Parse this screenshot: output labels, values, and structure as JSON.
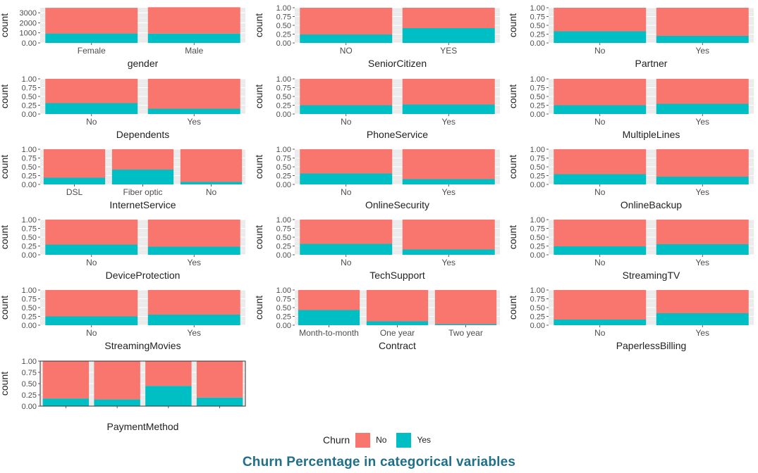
{
  "title": "Churn Percentage in categorical variables",
  "legend": {
    "title": "Churn",
    "items": [
      {
        "label": "No",
        "color": "#F8766D"
      },
      {
        "label": "Yes",
        "color": "#00BFC4"
      }
    ]
  },
  "colors": {
    "no": "#F8766D",
    "yes": "#00BFC4",
    "panel_bg": "#EBEBEB",
    "grid": "#FFFFFF"
  },
  "chart_data": [
    {
      "type": "bar",
      "stacked": true,
      "xlabel": "gender",
      "ylabel": "count",
      "categories": [
        "Female",
        "Male"
      ],
      "ylim": [
        0,
        3500
      ],
      "yticks": [
        0,
        1000,
        2000,
        3000
      ],
      "series": [
        {
          "name": "No",
          "values": [
            2550,
            2620
          ]
        },
        {
          "name": "Yes",
          "values": [
            940,
            930
          ]
        }
      ]
    },
    {
      "type": "bar",
      "stacked": true,
      "xlabel": "SeniorCitizen",
      "ylabel": "count",
      "categories": [
        "NO",
        "YES"
      ],
      "ylim": [
        0,
        1
      ],
      "yticks": [
        0,
        0.25,
        0.5,
        0.75,
        1
      ],
      "series": [
        {
          "name": "No",
          "values": [
            0.76,
            0.58
          ]
        },
        {
          "name": "Yes",
          "values": [
            0.24,
            0.42
          ]
        }
      ]
    },
    {
      "type": "bar",
      "stacked": true,
      "xlabel": "Partner",
      "ylabel": "count",
      "categories": [
        "No",
        "Yes"
      ],
      "ylim": [
        0,
        1
      ],
      "yticks": [
        0,
        0.25,
        0.5,
        0.75,
        1
      ],
      "series": [
        {
          "name": "No",
          "values": [
            0.67,
            0.8
          ]
        },
        {
          "name": "Yes",
          "values": [
            0.33,
            0.2
          ]
        }
      ]
    },
    {
      "type": "bar",
      "stacked": true,
      "xlabel": "Dependents",
      "ylabel": "count",
      "categories": [
        "No",
        "Yes"
      ],
      "ylim": [
        0,
        1
      ],
      "yticks": [
        0,
        0.25,
        0.5,
        0.75,
        1
      ],
      "series": [
        {
          "name": "No",
          "values": [
            0.69,
            0.85
          ]
        },
        {
          "name": "Yes",
          "values": [
            0.31,
            0.15
          ]
        }
      ]
    },
    {
      "type": "bar",
      "stacked": true,
      "xlabel": "PhoneService",
      "ylabel": "count",
      "categories": [
        "No",
        "Yes"
      ],
      "ylim": [
        0,
        1
      ],
      "yticks": [
        0,
        0.25,
        0.5,
        0.75,
        1
      ],
      "series": [
        {
          "name": "No",
          "values": [
            0.75,
            0.73
          ]
        },
        {
          "name": "Yes",
          "values": [
            0.25,
            0.27
          ]
        }
      ]
    },
    {
      "type": "bar",
      "stacked": true,
      "xlabel": "MultipleLines",
      "ylabel": "count",
      "categories": [
        "No",
        "Yes"
      ],
      "ylim": [
        0,
        1
      ],
      "yticks": [
        0,
        0.25,
        0.5,
        0.75,
        1
      ],
      "series": [
        {
          "name": "No",
          "values": [
            0.75,
            0.71
          ]
        },
        {
          "name": "Yes",
          "values": [
            0.25,
            0.29
          ]
        }
      ]
    },
    {
      "type": "bar",
      "stacked": true,
      "xlabel": "InternetService",
      "ylabel": "count",
      "categories": [
        "DSL",
        "Fiber optic",
        "No"
      ],
      "ylim": [
        0,
        1
      ],
      "yticks": [
        0,
        0.25,
        0.5,
        0.75,
        1
      ],
      "series": [
        {
          "name": "No",
          "values": [
            0.81,
            0.58,
            0.93
          ]
        },
        {
          "name": "Yes",
          "values": [
            0.19,
            0.42,
            0.07
          ]
        }
      ]
    },
    {
      "type": "bar",
      "stacked": true,
      "xlabel": "OnlineSecurity",
      "ylabel": "count",
      "categories": [
        "No",
        "Yes"
      ],
      "ylim": [
        0,
        1
      ],
      "yticks": [
        0,
        0.25,
        0.5,
        0.75,
        1
      ],
      "series": [
        {
          "name": "No",
          "values": [
            0.69,
            0.85
          ]
        },
        {
          "name": "Yes",
          "values": [
            0.31,
            0.15
          ]
        }
      ]
    },
    {
      "type": "bar",
      "stacked": true,
      "xlabel": "OnlineBackup",
      "ylabel": "count",
      "categories": [
        "No",
        "Yes"
      ],
      "ylim": [
        0,
        1
      ],
      "yticks": [
        0,
        0.25,
        0.5,
        0.75,
        1
      ],
      "series": [
        {
          "name": "No",
          "values": [
            0.71,
            0.78
          ]
        },
        {
          "name": "Yes",
          "values": [
            0.29,
            0.22
          ]
        }
      ]
    },
    {
      "type": "bar",
      "stacked": true,
      "xlabel": "DeviceProtection",
      "ylabel": "count",
      "categories": [
        "No",
        "Yes"
      ],
      "ylim": [
        0,
        1
      ],
      "yticks": [
        0,
        0.25,
        0.5,
        0.75,
        1
      ],
      "series": [
        {
          "name": "No",
          "values": [
            0.71,
            0.77
          ]
        },
        {
          "name": "Yes",
          "values": [
            0.29,
            0.23
          ]
        }
      ]
    },
    {
      "type": "bar",
      "stacked": true,
      "xlabel": "TechSupport",
      "ylabel": "count",
      "categories": [
        "No",
        "Yes"
      ],
      "ylim": [
        0,
        1
      ],
      "yticks": [
        0,
        0.25,
        0.5,
        0.75,
        1
      ],
      "series": [
        {
          "name": "No",
          "values": [
            0.69,
            0.85
          ]
        },
        {
          "name": "Yes",
          "values": [
            0.31,
            0.15
          ]
        }
      ]
    },
    {
      "type": "bar",
      "stacked": true,
      "xlabel": "StreamingTV",
      "ylabel": "count",
      "categories": [
        "No",
        "Yes"
      ],
      "ylim": [
        0,
        1
      ],
      "yticks": [
        0,
        0.25,
        0.5,
        0.75,
        1
      ],
      "series": [
        {
          "name": "No",
          "values": [
            0.76,
            0.7
          ]
        },
        {
          "name": "Yes",
          "values": [
            0.24,
            0.3
          ]
        }
      ]
    },
    {
      "type": "bar",
      "stacked": true,
      "xlabel": "StreamingMovies",
      "ylabel": "count",
      "categories": [
        "No",
        "Yes"
      ],
      "ylim": [
        0,
        1
      ],
      "yticks": [
        0,
        0.25,
        0.5,
        0.75,
        1
      ],
      "series": [
        {
          "name": "No",
          "values": [
            0.75,
            0.7
          ]
        },
        {
          "name": "Yes",
          "values": [
            0.25,
            0.3
          ]
        }
      ]
    },
    {
      "type": "bar",
      "stacked": true,
      "xlabel": "Contract",
      "ylabel": "count",
      "categories": [
        "Month-to-month",
        "One year",
        "Two year"
      ],
      "ylim": [
        0,
        1
      ],
      "yticks": [
        0,
        0.25,
        0.5,
        0.75,
        1
      ],
      "series": [
        {
          "name": "No",
          "values": [
            0.57,
            0.89,
            0.97
          ]
        },
        {
          "name": "Yes",
          "values": [
            0.43,
            0.11,
            0.03
          ]
        }
      ]
    },
    {
      "type": "bar",
      "stacked": true,
      "xlabel": "PaperlessBilling",
      "ylabel": "count",
      "categories": [
        "No",
        "Yes"
      ],
      "ylim": [
        0,
        1
      ],
      "yticks": [
        0,
        0.25,
        0.5,
        0.75,
        1
      ],
      "series": [
        {
          "name": "No",
          "values": [
            0.84,
            0.66
          ]
        },
        {
          "name": "Yes",
          "values": [
            0.16,
            0.34
          ]
        }
      ]
    },
    {
      "type": "bar",
      "stacked": true,
      "xlabel": "PaymentMethod",
      "ylabel": "count",
      "categories": [
        "",
        "",
        "",
        ""
      ],
      "ylim": [
        0,
        1
      ],
      "yticks": [
        0,
        0.25,
        0.5,
        0.75,
        1
      ],
      "series": [
        {
          "name": "No",
          "values": [
            0.83,
            0.85,
            0.55,
            0.81
          ]
        },
        {
          "name": "Yes",
          "values": [
            0.17,
            0.15,
            0.45,
            0.19
          ]
        }
      ]
    }
  ]
}
